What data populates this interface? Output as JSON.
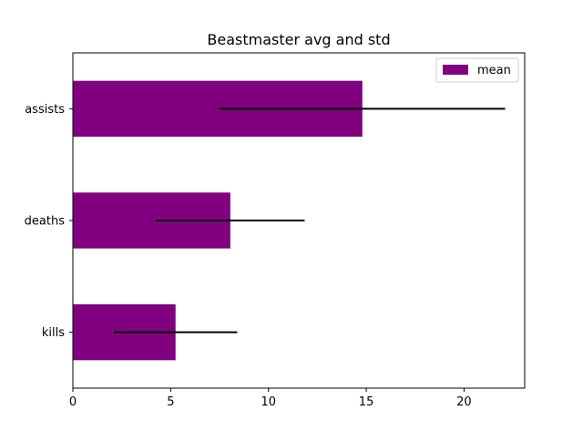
{
  "chart_data": {
    "type": "bar",
    "orientation": "horizontal",
    "title": "Beastmaster avg and std",
    "xlabel": "",
    "ylabel": "",
    "categories": [
      "kills",
      "deaths",
      "assists"
    ],
    "series": [
      {
        "name": "mean",
        "values": [
          5.25,
          8.05,
          14.8
        ],
        "error": [
          3.15,
          3.8,
          7.3
        ],
        "color": "#800080"
      }
    ],
    "error_color": "#000000",
    "xlim": [
      0,
      23.1
    ],
    "xticks": [
      0,
      5,
      10,
      15,
      20
    ],
    "grid": false,
    "legend": {
      "position": "top-right",
      "entries": [
        "mean"
      ]
    }
  }
}
